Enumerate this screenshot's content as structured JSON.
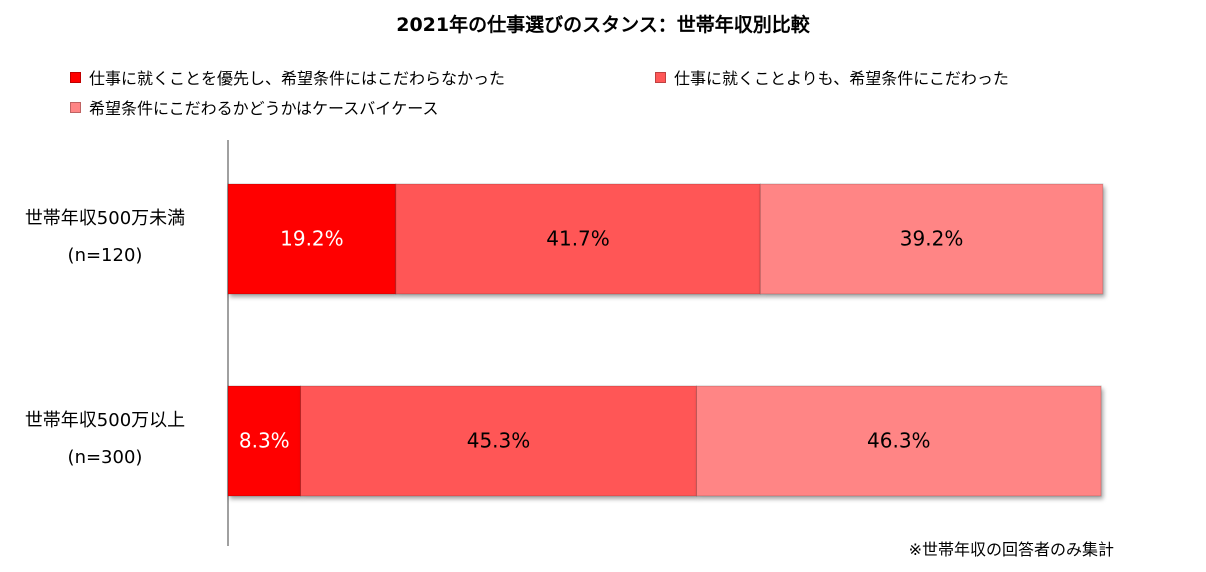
{
  "chart_data": {
    "type": "bar",
    "orientation": "horizontal",
    "stacked": true,
    "title": "2021年の仕事選びのスタンス：世帯年収別比較",
    "categories": [
      {
        "line1": "世帯年収500万未満",
        "line2": "(n=120)"
      },
      {
        "line1": "世帯年収500万以上",
        "line2": "(n=300)"
      }
    ],
    "series": [
      {
        "name": "仕事に就くことを優先し、希望条件にはこだわらなかった",
        "color": "#ff0000",
        "label_color": "#ffffff",
        "values": [
          19.2,
          8.3
        ],
        "labels": [
          "19.2%",
          "8.3%"
        ]
      },
      {
        "name": "仕事に就くことよりも、希望条件にこだわった",
        "color": "#ff5757",
        "label_color": "#000000",
        "values": [
          41.7,
          45.3
        ],
        "labels": [
          "41.7%",
          "45.3%"
        ]
      },
      {
        "name": "希望条件にこだわるかどうかはケースバイケース",
        "color": "#ff8585",
        "label_color": "#000000",
        "values": [
          39.2,
          46.3
        ],
        "labels": [
          "39.2%",
          "46.3%"
        ]
      }
    ],
    "xlim": [
      0,
      100
    ],
    "grid": false,
    "legend_position": "top"
  },
  "footnote": "※世帯年収の回答者のみ集計"
}
